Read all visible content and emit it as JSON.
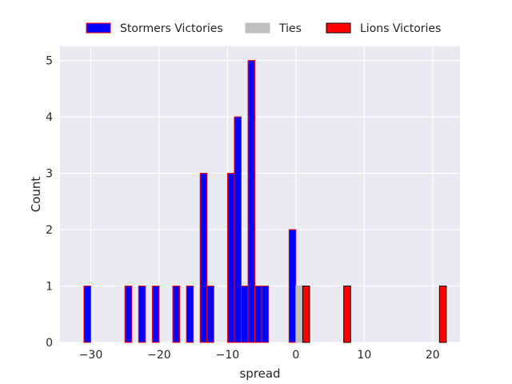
{
  "chart_data": {
    "type": "bar",
    "title": "",
    "xlabel": "spread",
    "ylabel": "Count",
    "xlim": [
      -34.5,
      24
    ],
    "ylim": [
      0,
      5.25
    ],
    "xticks": [
      -30,
      -20,
      -10,
      0,
      10,
      20
    ],
    "xtick_labels": [
      "−30",
      "−20",
      "−10",
      "0",
      "10",
      "20"
    ],
    "yticks": [
      0,
      1,
      2,
      3,
      4,
      5
    ],
    "ytick_labels": [
      "0",
      "1",
      "2",
      "3",
      "4",
      "5"
    ],
    "grid": true,
    "legend_position": "top-center",
    "bin_width": 1,
    "series": [
      {
        "name": "Stormers Victories",
        "fill": "#0000ff",
        "edge": "#ff0000",
        "bins": [
          {
            "x": -31,
            "count": 1
          },
          {
            "x": -25,
            "count": 1
          },
          {
            "x": -23,
            "count": 1
          },
          {
            "x": -21,
            "count": 1
          },
          {
            "x": -18,
            "count": 1
          },
          {
            "x": -16,
            "count": 1
          },
          {
            "x": -14,
            "count": 3
          },
          {
            "x": -13,
            "count": 1
          },
          {
            "x": -10,
            "count": 3
          },
          {
            "x": -9,
            "count": 4
          },
          {
            "x": -8,
            "count": 1
          },
          {
            "x": -7,
            "count": 5
          },
          {
            "x": -6,
            "count": 1
          },
          {
            "x": -5,
            "count": 1
          },
          {
            "x": -1,
            "count": 2
          }
        ]
      },
      {
        "name": "Ties",
        "fill": "#bfbfbf",
        "edge": "#bfbfbf",
        "bins": [
          {
            "x": 0,
            "count": 1
          }
        ]
      },
      {
        "name": "Lions Victories",
        "fill": "#ff0000",
        "edge": "#000000",
        "bins": [
          {
            "x": 1,
            "count": 1
          },
          {
            "x": 7,
            "count": 1
          },
          {
            "x": 21,
            "count": 1
          }
        ]
      }
    ]
  }
}
